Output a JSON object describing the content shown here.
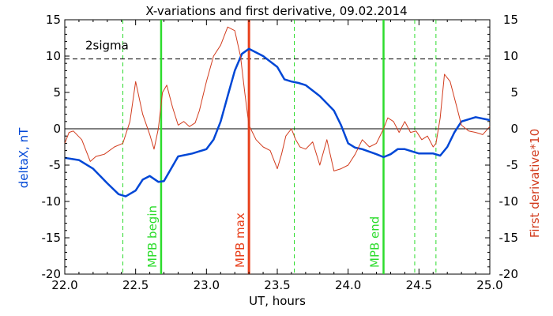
{
  "chart_data": {
    "type": "line",
    "title": "X-variations and first derivative, 09.02.2014",
    "xlabel": "UT, hours",
    "ylabel_left": "deltaX, nT",
    "ylabel_right": "First derivative*10",
    "xlim": [
      22.0,
      25.0
    ],
    "ylim": [
      -20,
      15
    ],
    "x_ticks": [
      "22.0",
      "22.5",
      "23.0",
      "23.5",
      "24.0",
      "24.5",
      "25.0"
    ],
    "y_ticks": [
      "15",
      "10",
      "5",
      "0",
      "-5",
      "-10",
      "-15",
      "-20"
    ],
    "grid": false,
    "colors": {
      "deltaX": "#0047d6",
      "derivative": "#d23c1e",
      "marker_green": "#2ddc2d",
      "marker_red": "#e8401c"
    },
    "threshold": {
      "label": "2sigma",
      "value": 9.6
    },
    "zero_line": 0,
    "markers": [
      {
        "label": "MPB begin",
        "x": 22.68,
        "color": "green"
      },
      {
        "label": "MPB max",
        "x": 23.3,
        "color": "red"
      },
      {
        "label": "MPB end",
        "x": 24.25,
        "color": "green"
      }
    ],
    "dashed_markers": [
      22.41,
      22.68,
      23.62,
      24.25,
      24.47,
      24.62
    ],
    "series": [
      {
        "name": "deltaX",
        "axis": "left",
        "x": [
          22.0,
          22.1,
          22.2,
          22.3,
          22.38,
          22.43,
          22.5,
          22.55,
          22.6,
          22.66,
          22.7,
          22.75,
          22.8,
          22.9,
          23.0,
          23.05,
          23.1,
          23.15,
          23.2,
          23.25,
          23.3,
          23.35,
          23.4,
          23.5,
          23.55,
          23.6,
          23.65,
          23.7,
          23.8,
          23.9,
          23.95,
          24.0,
          24.05,
          24.1,
          24.2,
          24.25,
          24.3,
          24.35,
          24.4,
          24.5,
          24.6,
          24.65,
          24.7,
          24.75,
          24.8,
          24.9,
          25.0
        ],
        "y": [
          -4.0,
          -4.3,
          -5.5,
          -7.5,
          -9.0,
          -9.3,
          -8.5,
          -7.0,
          -6.5,
          -7.3,
          -7.2,
          -5.5,
          -3.8,
          -3.4,
          -2.8,
          -1.5,
          1.0,
          4.5,
          8.0,
          10.3,
          11.0,
          10.5,
          10.0,
          8.5,
          6.8,
          6.5,
          6.3,
          6.0,
          4.5,
          2.5,
          0.5,
          -2.0,
          -2.6,
          -2.8,
          -3.5,
          -3.9,
          -3.5,
          -2.8,
          -2.8,
          -3.4,
          -3.4,
          -3.7,
          -2.5,
          -0.5,
          1.0,
          1.6,
          1.2
        ]
      },
      {
        "name": "First derivative*10",
        "axis": "right",
        "x": [
          22.0,
          22.03,
          22.06,
          22.12,
          22.18,
          22.22,
          22.28,
          22.35,
          22.41,
          22.46,
          22.5,
          22.55,
          22.6,
          22.63,
          22.66,
          22.69,
          22.72,
          22.76,
          22.8,
          22.84,
          22.88,
          22.92,
          22.95,
          23.0,
          23.05,
          23.1,
          23.15,
          23.2,
          23.24,
          23.27,
          23.3,
          23.35,
          23.4,
          23.45,
          23.5,
          23.53,
          23.56,
          23.6,
          23.63,
          23.66,
          23.7,
          23.75,
          23.8,
          23.85,
          23.9,
          23.95,
          24.0,
          24.05,
          24.1,
          24.15,
          24.2,
          24.25,
          24.28,
          24.32,
          24.36,
          24.4,
          24.44,
          24.48,
          24.52,
          24.56,
          24.6,
          24.62,
          24.65,
          24.68,
          24.72,
          24.76,
          24.8,
          24.85,
          24.9,
          24.95,
          25.0
        ],
        "y": [
          -2.0,
          -0.5,
          -0.3,
          -1.5,
          -4.5,
          -3.8,
          -3.5,
          -2.5,
          -2.0,
          1.0,
          6.5,
          2.0,
          -0.8,
          -2.8,
          0.0,
          5.0,
          6.0,
          3.0,
          0.5,
          1.0,
          0.3,
          0.8,
          2.5,
          6.5,
          10.0,
          11.5,
          14.0,
          13.5,
          10.0,
          5.0,
          0.5,
          -1.5,
          -2.5,
          -3.0,
          -5.5,
          -3.5,
          -1.0,
          0.0,
          -1.5,
          -2.5,
          -2.8,
          -1.8,
          -5.0,
          -1.5,
          -5.8,
          -5.5,
          -5.0,
          -3.5,
          -1.5,
          -2.5,
          -2.0,
          0.0,
          1.5,
          1.0,
          -0.5,
          1.0,
          -0.5,
          -0.3,
          -1.5,
          -1.0,
          -2.5,
          -2.0,
          1.5,
          7.5,
          6.5,
          3.5,
          0.5,
          -0.3,
          -0.5,
          -0.8,
          0.3
        ]
      }
    ]
  }
}
